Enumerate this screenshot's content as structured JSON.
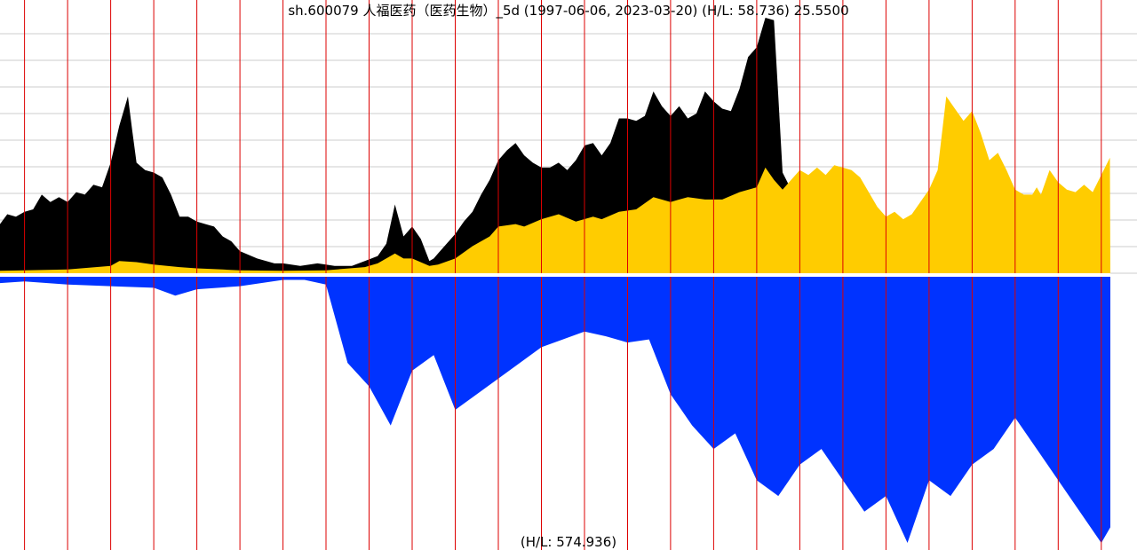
{
  "chart_data": {
    "type": "area",
    "title": "sh.600079 人福医药（医药生物）_5d (1997-06-06, 2023-03-20) (H/L: 58.736) 25.5500",
    "footer_label": "(H/L: 574.936)",
    "x_range": [
      "1997-06-06",
      "2023-03-20"
    ],
    "price_high_low_ratio": 58.736,
    "last_price": 25.55,
    "volume_high_low_ratio": 574.936,
    "year_markers": [
      "1998",
      "1999",
      "2000",
      "2001",
      "2002",
      "2003",
      "2004",
      "2005",
      "2006",
      "2007",
      "2008",
      "2009",
      "2010",
      "2011",
      "2012",
      "2013",
      "2014",
      "2015",
      "2016",
      "2017",
      "2018",
      "2019",
      "2020",
      "2021",
      "2022",
      "2023"
    ],
    "grid": true,
    "colors": {
      "adjusted_price": "#000000",
      "price": "#ffcc00",
      "volume": "#0033ff",
      "year_line": "#dd0000",
      "grid": "#cccccc",
      "background": "#ffffff"
    },
    "series": [
      {
        "key": "adjusted_price",
        "x": [
          1997.43,
          1997.6,
          1997.8,
          1998.0,
          1998.2,
          1998.4,
          1998.6,
          1998.8,
          1999.0,
          1999.2,
          1999.4,
          1999.6,
          1999.8,
          2000.0,
          2000.2,
          2000.4,
          2000.5,
          2000.6,
          2000.8,
          2001.0,
          2001.2,
          2001.4,
          2001.6,
          2001.8,
          2002.0,
          2002.2,
          2002.4,
          2002.6,
          2002.8,
          2003.0,
          2003.4,
          2003.8,
          2004.0,
          2004.4,
          2004.8,
          2005.0,
          2005.2,
          2005.4,
          2005.6,
          2005.9,
          2006.2,
          2006.4,
          2006.6,
          2006.8,
          2007.0,
          2007.2,
          2007.4,
          2007.5,
          2007.6,
          2007.8,
          2008.0,
          2008.2,
          2008.4,
          2008.6,
          2008.8,
          2009.0,
          2009.2,
          2009.4,
          2009.6,
          2009.8,
          2010.0,
          2010.2,
          2010.4,
          2010.6,
          2010.8,
          2011.0,
          2011.2,
          2011.4,
          2011.6,
          2011.8,
          2012.0,
          2012.2,
          2012.4,
          2012.6,
          2012.8,
          2013.0,
          2013.2,
          2013.4,
          2013.6,
          2013.8,
          2014.0,
          2014.2,
          2014.4,
          2014.6,
          2014.8,
          2015.0,
          2015.2,
          2015.4,
          2015.5,
          2015.6,
          2015.8,
          2016.0
        ],
        "values": [
          2.0,
          2.4,
          2.3,
          2.5,
          2.6,
          3.2,
          2.9,
          3.1,
          2.9,
          3.3,
          3.2,
          3.6,
          3.5,
          4.5,
          6.0,
          7.2,
          5.8,
          4.5,
          4.2,
          4.1,
          3.9,
          3.2,
          2.3,
          2.3,
          2.1,
          2.0,
          1.9,
          1.5,
          1.3,
          0.9,
          0.6,
          0.4,
          0.4,
          0.3,
          0.4,
          0.35,
          0.3,
          0.3,
          0.3,
          0.5,
          0.7,
          1.2,
          2.8,
          1.5,
          1.9,
          1.4,
          0.5,
          0.6,
          0.8,
          1.2,
          1.6,
          2.1,
          2.5,
          3.2,
          3.8,
          4.6,
          5.0,
          5.3,
          4.8,
          4.5,
          4.3,
          4.3,
          4.5,
          4.2,
          4.6,
          5.2,
          5.3,
          4.8,
          5.3,
          6.3,
          6.3,
          6.2,
          6.4,
          7.4,
          6.8,
          6.4,
          6.8,
          6.3,
          6.5,
          7.4,
          7.0,
          6.7,
          6.6,
          7.5,
          8.8,
          9.2,
          10.4,
          10.3,
          7.2,
          4.1,
          3.4,
          3.6
        ]
      },
      {
        "key": "price",
        "x": [
          1997.43,
          1998.0,
          1999.0,
          2000.0,
          2000.2,
          2000.6,
          2001.0,
          2001.6,
          2002.0,
          2002.6,
          2003.0,
          2004.0,
          2005.0,
          2005.9,
          2006.2,
          2006.6,
          2006.8,
          2007.0,
          2007.4,
          2007.6,
          2008.0,
          2008.4,
          2008.8,
          2009.0,
          2009.4,
          2009.6,
          2010.0,
          2010.4,
          2010.8,
          2011.2,
          2011.4,
          2011.8,
          2012.2,
          2012.6,
          2013.0,
          2013.4,
          2013.8,
          2014.2,
          2014.6,
          2015.0,
          2015.2,
          2015.4,
          2015.6,
          2016.0,
          2016.2,
          2016.4,
          2016.6,
          2016.8,
          2017.0,
          2017.2,
          2017.4,
          2017.6,
          2017.8,
          2018.0,
          2018.2,
          2018.4,
          2018.6,
          2019.0,
          2019.2,
          2019.4,
          2019.6,
          2019.8,
          2020.0,
          2020.2,
          2020.4,
          2020.6,
          2020.8,
          2021.0,
          2021.2,
          2021.4,
          2021.5,
          2021.6,
          2021.8,
          2022.0,
          2022.2,
          2022.4,
          2022.6,
          2022.8,
          2023.0,
          2023.2,
          2023.21
        ],
        "values": [
          0.1,
          0.12,
          0.15,
          0.3,
          0.5,
          0.45,
          0.35,
          0.25,
          0.2,
          0.15,
          0.12,
          0.1,
          0.12,
          0.25,
          0.4,
          0.8,
          0.6,
          0.6,
          0.3,
          0.35,
          0.6,
          1.1,
          1.5,
          1.9,
          2.0,
          1.9,
          2.2,
          2.4,
          2.1,
          2.3,
          2.2,
          2.5,
          2.6,
          3.1,
          2.9,
          3.1,
          3.0,
          3.0,
          3.3,
          3.5,
          4.3,
          3.8,
          3.4,
          4.2,
          4.0,
          4.3,
          4.0,
          4.4,
          4.3,
          4.2,
          3.9,
          3.3,
          2.7,
          2.3,
          2.5,
          2.2,
          2.4,
          3.4,
          4.2,
          7.2,
          6.7,
          6.2,
          6.6,
          5.7,
          4.6,
          4.9,
          4.2,
          3.4,
          3.2,
          3.2,
          3.5,
          3.2,
          4.2,
          3.7,
          3.4,
          3.3,
          3.6,
          3.3,
          4.0,
          4.7,
          0.0
        ]
      },
      {
        "key": "volume",
        "x": [
          1997.43,
          1998.0,
          1999.0,
          2000.0,
          2001.0,
          2001.5,
          2002.0,
          2003.0,
          2004.0,
          2004.5,
          2005.0,
          2005.5,
          2006.0,
          2006.5,
          2007.0,
          2007.5,
          2008.0,
          2008.5,
          2009.0,
          2009.5,
          2010.0,
          2010.5,
          2011.0,
          2011.5,
          2012.0,
          2012.5,
          2013.0,
          2013.5,
          2014.0,
          2014.5,
          2015.0,
          2015.5,
          2016.0,
          2016.5,
          2017.0,
          2017.5,
          2018.0,
          2018.5,
          2019.0,
          2019.5,
          2020.0,
          2020.5,
          2021.0,
          2021.5,
          2022.0,
          2022.5,
          2023.0,
          2023.21
        ],
        "values": [
          4,
          3,
          5,
          6,
          7,
          12,
          8,
          6,
          2,
          2,
          5,
          55,
          70,
          95,
          60,
          50,
          85,
          75,
          65,
          55,
          45,
          40,
          35,
          38,
          42,
          40,
          75,
          95,
          110,
          100,
          130,
          140,
          120,
          110,
          130,
          150,
          140,
          170,
          130,
          140,
          120,
          110,
          90,
          110,
          130,
          150,
          170,
          160
        ]
      }
    ]
  }
}
